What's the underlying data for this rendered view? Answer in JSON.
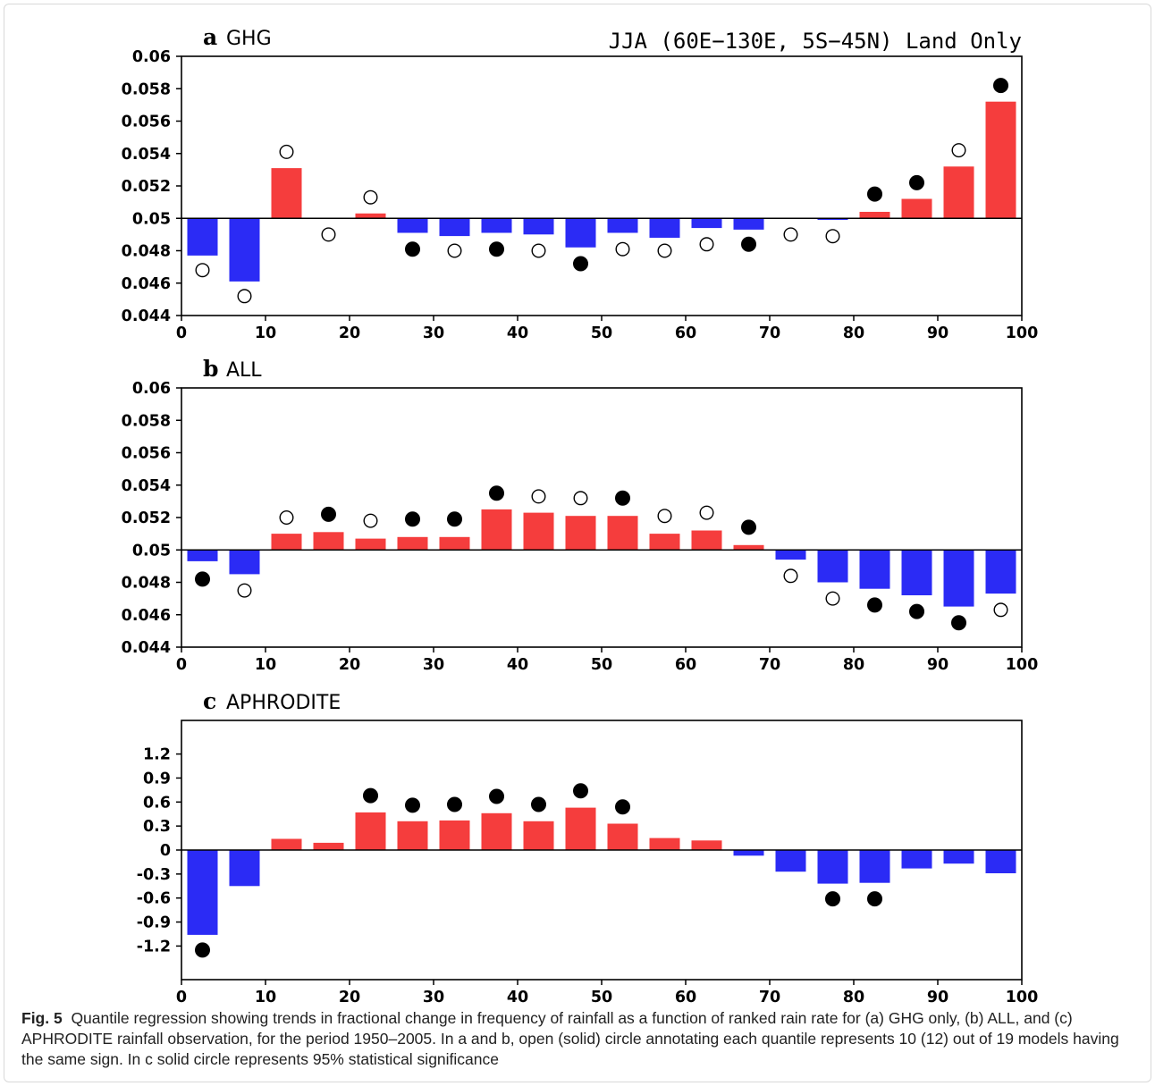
{
  "colors": {
    "positive": "#f53d3d",
    "negative": "#2b2bf5",
    "axis": "#000000"
  },
  "region_text": "JJA (60E−130E, 5S−45N) Land Only",
  "chart_data": [
    {
      "type": "bar",
      "panel_letter": "a",
      "title": "GHG",
      "baseline": 0.05,
      "xlim": [
        0,
        100
      ],
      "ylim": [
        0.044,
        0.06
      ],
      "xticks": [
        0,
        10,
        20,
        30,
        40,
        50,
        60,
        70,
        80,
        90,
        100
      ],
      "yticks": [
        0.044,
        0.046,
        0.048,
        0.05,
        0.052,
        0.054,
        0.056,
        0.058,
        0.06
      ],
      "ytick_labels": [
        "0.044",
        "0.046",
        "0.048",
        "0.05",
        "0.052",
        "0.054",
        "0.056",
        "0.058",
        "0.06"
      ],
      "x": [
        2.5,
        7.5,
        12.5,
        17.5,
        22.5,
        27.5,
        32.5,
        37.5,
        42.5,
        47.5,
        52.5,
        57.5,
        62.5,
        67.5,
        72.5,
        77.5,
        82.5,
        87.5,
        92.5,
        97.5
      ],
      "values": [
        0.0477,
        0.0461,
        0.0531,
        0.05,
        0.0503,
        0.0491,
        0.0489,
        0.0491,
        0.049,
        0.0482,
        0.0491,
        0.0488,
        0.0494,
        0.0493,
        0.05,
        0.0499,
        0.0504,
        0.0512,
        0.0532,
        0.0572
      ],
      "markers": [
        {
          "x": 2.5,
          "y": 0.0468,
          "filled": false
        },
        {
          "x": 7.5,
          "y": 0.0452,
          "filled": false
        },
        {
          "x": 12.5,
          "y": 0.0541,
          "filled": false
        },
        {
          "x": 17.5,
          "y": 0.049,
          "filled": false
        },
        {
          "x": 22.5,
          "y": 0.0513,
          "filled": false
        },
        {
          "x": 27.5,
          "y": 0.0481,
          "filled": true
        },
        {
          "x": 32.5,
          "y": 0.048,
          "filled": false
        },
        {
          "x": 37.5,
          "y": 0.0481,
          "filled": true
        },
        {
          "x": 42.5,
          "y": 0.048,
          "filled": false
        },
        {
          "x": 47.5,
          "y": 0.0472,
          "filled": true
        },
        {
          "x": 52.5,
          "y": 0.0481,
          "filled": false
        },
        {
          "x": 57.5,
          "y": 0.048,
          "filled": false
        },
        {
          "x": 62.5,
          "y": 0.0484,
          "filled": false
        },
        {
          "x": 67.5,
          "y": 0.0484,
          "filled": true
        },
        {
          "x": 72.5,
          "y": 0.049,
          "filled": false
        },
        {
          "x": 77.5,
          "y": 0.0489,
          "filled": false
        },
        {
          "x": 82.5,
          "y": 0.0515,
          "filled": true
        },
        {
          "x": 87.5,
          "y": 0.0522,
          "filled": true
        },
        {
          "x": 92.5,
          "y": 0.0542,
          "filled": false
        },
        {
          "x": 97.5,
          "y": 0.0582,
          "filled": true
        }
      ]
    },
    {
      "type": "bar",
      "panel_letter": "b",
      "title": "ALL",
      "baseline": 0.05,
      "xlim": [
        0,
        100
      ],
      "ylim": [
        0.044,
        0.06
      ],
      "xticks": [
        0,
        10,
        20,
        30,
        40,
        50,
        60,
        70,
        80,
        90,
        100
      ],
      "yticks": [
        0.044,
        0.046,
        0.048,
        0.05,
        0.052,
        0.054,
        0.056,
        0.058,
        0.06
      ],
      "ytick_labels": [
        "0.044",
        "0.046",
        "0.048",
        "0.05",
        "0.052",
        "0.054",
        "0.056",
        "0.058",
        "0.06"
      ],
      "x": [
        2.5,
        7.5,
        12.5,
        17.5,
        22.5,
        27.5,
        32.5,
        37.5,
        42.5,
        47.5,
        52.5,
        57.5,
        62.5,
        67.5,
        72.5,
        77.5,
        82.5,
        87.5,
        92.5,
        97.5
      ],
      "values": [
        0.0493,
        0.0485,
        0.051,
        0.0511,
        0.0507,
        0.0508,
        0.0508,
        0.0525,
        0.0523,
        0.0521,
        0.0521,
        0.051,
        0.0512,
        0.0503,
        0.0494,
        0.048,
        0.0476,
        0.0472,
        0.0465,
        0.0473
      ],
      "markers": [
        {
          "x": 2.5,
          "y": 0.0482,
          "filled": true
        },
        {
          "x": 7.5,
          "y": 0.0475,
          "filled": false
        },
        {
          "x": 12.5,
          "y": 0.052,
          "filled": false
        },
        {
          "x": 17.5,
          "y": 0.0522,
          "filled": true
        },
        {
          "x": 22.5,
          "y": 0.0518,
          "filled": false
        },
        {
          "x": 27.5,
          "y": 0.0519,
          "filled": true
        },
        {
          "x": 32.5,
          "y": 0.0519,
          "filled": true
        },
        {
          "x": 37.5,
          "y": 0.0535,
          "filled": true
        },
        {
          "x": 42.5,
          "y": 0.0533,
          "filled": false
        },
        {
          "x": 47.5,
          "y": 0.0532,
          "filled": false
        },
        {
          "x": 52.5,
          "y": 0.0532,
          "filled": true
        },
        {
          "x": 57.5,
          "y": 0.0521,
          "filled": false
        },
        {
          "x": 62.5,
          "y": 0.0523,
          "filled": false
        },
        {
          "x": 67.5,
          "y": 0.0514,
          "filled": true
        },
        {
          "x": 72.5,
          "y": 0.0484,
          "filled": false
        },
        {
          "x": 77.5,
          "y": 0.047,
          "filled": false
        },
        {
          "x": 82.5,
          "y": 0.0466,
          "filled": true
        },
        {
          "x": 87.5,
          "y": 0.0462,
          "filled": true
        },
        {
          "x": 92.5,
          "y": 0.0455,
          "filled": true
        },
        {
          "x": 97.5,
          "y": 0.0463,
          "filled": false
        }
      ]
    },
    {
      "type": "bar",
      "panel_letter": "c",
      "title": "APHRODITE",
      "baseline": 0,
      "xlim": [
        0,
        100
      ],
      "ylim": [
        -1.62,
        1.62
      ],
      "xticks": [
        0,
        10,
        20,
        30,
        40,
        50,
        60,
        70,
        80,
        90,
        100
      ],
      "yticks": [
        -1.2,
        -0.9,
        -0.6,
        -0.3,
        0,
        0.3,
        0.6,
        0.9,
        1.2
      ],
      "ytick_labels": [
        "-1.2",
        "-0.9",
        "-0.6",
        "-0.3",
        "0",
        "0.3",
        "0.6",
        "0.9",
        "1.2"
      ],
      "x": [
        2.5,
        7.5,
        12.5,
        17.5,
        22.5,
        27.5,
        32.5,
        37.5,
        42.5,
        47.5,
        52.5,
        57.5,
        62.5,
        67.5,
        72.5,
        77.5,
        82.5,
        87.5,
        92.5,
        97.5
      ],
      "values": [
        -1.06,
        -0.45,
        0.14,
        0.09,
        0.47,
        0.36,
        0.37,
        0.46,
        0.36,
        0.53,
        0.33,
        0.15,
        0.12,
        -0.07,
        -0.27,
        -0.42,
        -0.41,
        -0.23,
        -0.17,
        -0.29
      ],
      "markers": [
        {
          "x": 2.5,
          "y": -1.25,
          "filled": true
        },
        {
          "x": 22.5,
          "y": 0.68,
          "filled": true
        },
        {
          "x": 27.5,
          "y": 0.56,
          "filled": true
        },
        {
          "x": 32.5,
          "y": 0.57,
          "filled": true
        },
        {
          "x": 37.5,
          "y": 0.67,
          "filled": true
        },
        {
          "x": 42.5,
          "y": 0.57,
          "filled": true
        },
        {
          "x": 47.5,
          "y": 0.74,
          "filled": true
        },
        {
          "x": 52.5,
          "y": 0.54,
          "filled": true
        },
        {
          "x": 77.5,
          "y": -0.61,
          "filled": true
        },
        {
          "x": 82.5,
          "y": -0.61,
          "filled": true
        }
      ]
    }
  ],
  "caption": {
    "label": "Fig. 5",
    "text": "Quantile regression showing trends in fractional change in frequency of rainfall as a function of ranked rain rate for (a) GHG only, (b) ALL, and (c) APHRODITE rainfall observation, for the period 1950–2005. In a and b, open (solid) circle annotating each quantile represents 10 (12) out of 19 models having the same sign. In c solid circle represents 95% statistical significance"
  }
}
